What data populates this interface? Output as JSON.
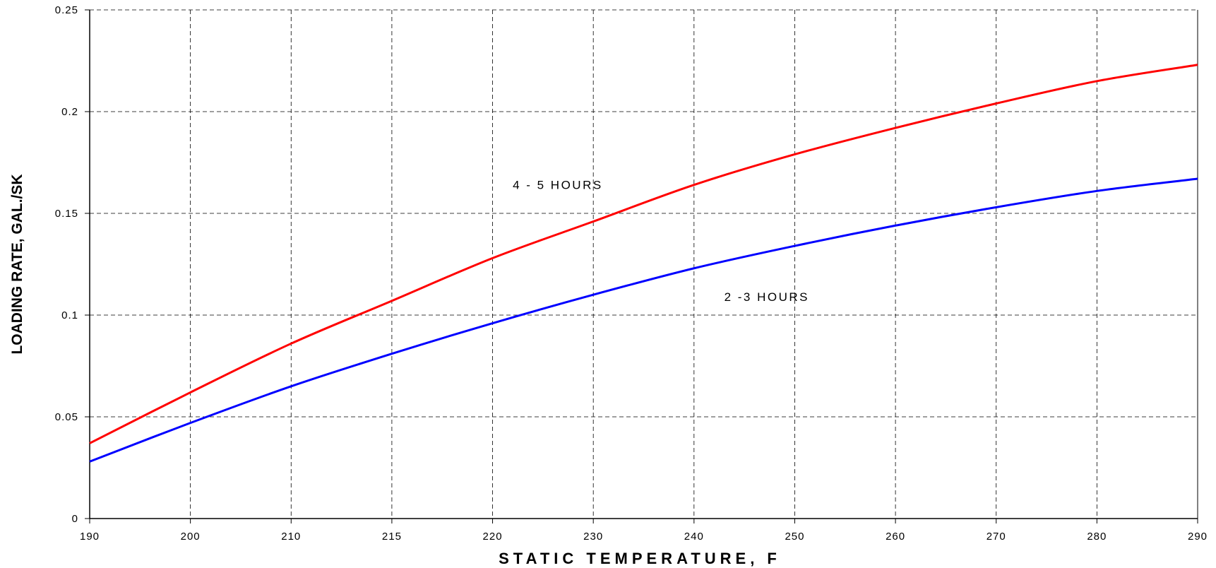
{
  "chart_data": {
    "type": "line",
    "xlabel": "STATIC TEMPERATURE, F",
    "ylabel": "LOADING RATE, GAL./SK",
    "x_tick_labels": [
      "190",
      "200",
      "210",
      "215",
      "220",
      "230",
      "240",
      "250",
      "260",
      "270",
      "280",
      "290"
    ],
    "y_tick_labels": [
      "0",
      "0.05",
      "0.1",
      "0.15",
      "0.2",
      "0.25"
    ],
    "y_ticks": [
      0,
      0.05,
      0.1,
      0.15,
      0.2,
      0.25
    ],
    "ylim": [
      0,
      0.25
    ],
    "grid": true,
    "grid_style": "dashed",
    "series": [
      {
        "label_position": "4 - 5 HOURS",
        "color": "#ff0000",
        "points": [
          {
            "x": "190",
            "y": 0.037
          },
          {
            "x": "200",
            "y": 0.062
          },
          {
            "x": "210",
            "y": 0.086
          },
          {
            "x": "215",
            "y": 0.107
          },
          {
            "x": "220",
            "y": 0.128
          },
          {
            "x": "230",
            "y": 0.146
          },
          {
            "x": "240",
            "y": 0.164
          },
          {
            "x": "250",
            "y": 0.179
          },
          {
            "x": "260",
            "y": 0.192
          },
          {
            "x": "270",
            "y": 0.204
          },
          {
            "x": "280",
            "y": 0.215
          },
          {
            "x": "290",
            "y": 0.223
          }
        ]
      },
      {
        "label_position": "2 -3 HOURS",
        "color": "#0000ff",
        "points": [
          {
            "x": "190",
            "y": 0.028
          },
          {
            "x": "200",
            "y": 0.047
          },
          {
            "x": "210",
            "y": 0.065
          },
          {
            "x": "215",
            "y": 0.081
          },
          {
            "x": "220",
            "y": 0.096
          },
          {
            "x": "230",
            "y": 0.11
          },
          {
            "x": "240",
            "y": 0.123
          },
          {
            "x": "250",
            "y": 0.134
          },
          {
            "x": "260",
            "y": 0.144
          },
          {
            "x": "270",
            "y": 0.153
          },
          {
            "x": "280",
            "y": 0.161
          },
          {
            "x": "290",
            "y": 0.167
          }
        ]
      }
    ],
    "annotations": [
      {
        "text": "4 - 5 HOURS",
        "near_x": "222",
        "near_y": 0.162
      },
      {
        "text": "2 -3 HOURS",
        "near_x": "243",
        "near_y": 0.107
      }
    ]
  }
}
